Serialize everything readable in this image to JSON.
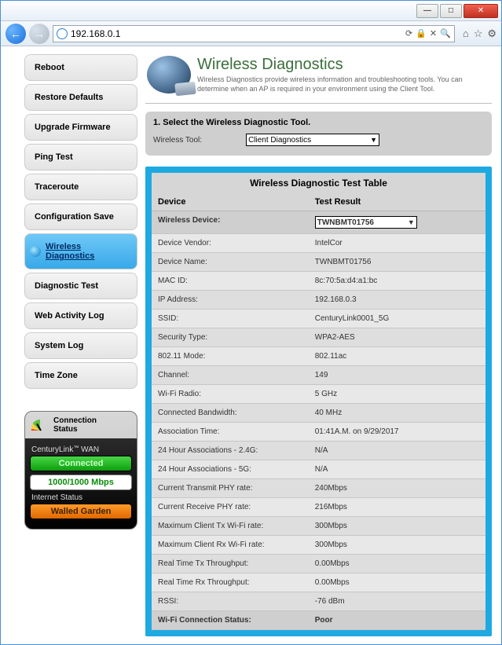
{
  "browser": {
    "url": "192.168.0.1",
    "minimize": "—",
    "maximize": "□",
    "close": "✕",
    "back": "←",
    "forward": "→",
    "addr_icons": {
      "refresh": "⟳",
      "stop": "✕",
      "lock": "🔒",
      "search": "🔍"
    },
    "right_icons": {
      "home": "⌂",
      "star": "☆",
      "gear": "⚙"
    }
  },
  "sidebar": {
    "items": [
      {
        "label": "Reboot"
      },
      {
        "label": "Restore Defaults"
      },
      {
        "label": "Upgrade Firmware"
      },
      {
        "label": "Ping Test"
      },
      {
        "label": "Traceroute"
      },
      {
        "label": "Configuration Save"
      },
      {
        "label": "Wireless Diagnostics"
      },
      {
        "label": "Diagnostic Test"
      },
      {
        "label": "Web Activity Log"
      },
      {
        "label": "System Log"
      },
      {
        "label": "Time Zone"
      }
    ],
    "active_index": 6
  },
  "connection": {
    "heading1": "Connection",
    "heading2": "Status",
    "wan_label_a": "CenturyLink",
    "wan_label_b": " WAN",
    "tm": "™",
    "connected": "Connected",
    "speed": "1000/1000 Mbps",
    "internet_label": "Internet Status",
    "walled": "Walled Garden"
  },
  "page": {
    "title": "Wireless Diagnostics",
    "subtitle": "Wireless Diagnostics provide wireless information and troubleshooting tools. You can determine when an AP is required in your environment using the Client Tool."
  },
  "step": {
    "title": "1. Select the Wireless Diagnostic Tool.",
    "label": "Wireless Tool:",
    "selected": "Client Diagnostics"
  },
  "table": {
    "title": "Wireless Diagnostic Test Table",
    "col_device": "Device",
    "col_result": "Test Result",
    "device_label": "Wireless Device:",
    "device_selected": "TWNBMT01756",
    "rows": [
      {
        "k": "Device Vendor:",
        "v": "IntelCor"
      },
      {
        "k": "Device Name:",
        "v": "TWNBMT01756"
      },
      {
        "k": "MAC ID:",
        "v": "8c:70:5a:d4:a1:bc"
      },
      {
        "k": "IP Address:",
        "v": "192.168.0.3"
      },
      {
        "k": "SSID:",
        "v": "CenturyLink0001_5G"
      },
      {
        "k": "Security Type:",
        "v": "WPA2-AES"
      },
      {
        "k": "802.11 Mode:",
        "v": "802.11ac"
      },
      {
        "k": "Channel:",
        "v": "149"
      },
      {
        "k": "Wi-Fi Radio:",
        "v": "5 GHz"
      },
      {
        "k": "Connected Bandwidth:",
        "v": "40 MHz"
      },
      {
        "k": "Association Time:",
        "v": "01:41A.M. on 9/29/2017"
      },
      {
        "k": "24 Hour Associations - 2.4G:",
        "v": "N/A"
      },
      {
        "k": "24 Hour Associations - 5G:",
        "v": "N/A"
      },
      {
        "k": "Current Transmit PHY rate:",
        "v": "240Mbps"
      },
      {
        "k": "Current Receive PHY rate:",
        "v": "216Mbps"
      },
      {
        "k": "Maximum Client Tx Wi-Fi rate:",
        "v": "300Mbps"
      },
      {
        "k": "Maximum Client Rx Wi-Fi rate:",
        "v": "300Mbps"
      },
      {
        "k": "Real Time Tx Throughput:",
        "v": "0.00Mbps"
      },
      {
        "k": "Real Time Rx Throughput:",
        "v": "0.00Mbps"
      },
      {
        "k": "RSSI:",
        "v": "-76 dBm"
      }
    ],
    "status_label": "Wi-Fi Connection Status:",
    "status_value": "Poor"
  },
  "colors": {
    "blue_frame": "#1ea9e1",
    "green_title": "#3b6e3b"
  }
}
